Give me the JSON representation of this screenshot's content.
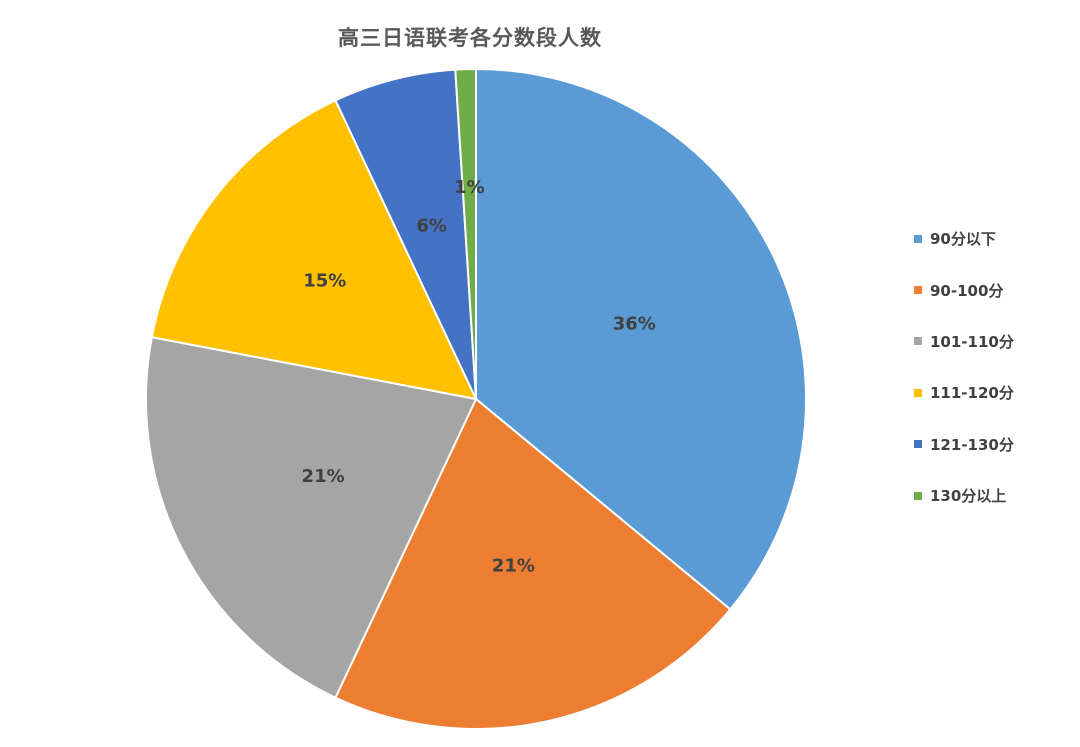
{
  "chart_data": {
    "type": "pie",
    "title": "高三日语联考各分数段人数",
    "categories": [
      "90分以下",
      "90-100分",
      "101-110分",
      "111-120分",
      "121-130分",
      "130分以上"
    ],
    "values": [
      36,
      21,
      21,
      15,
      6,
      1
    ],
    "data_labels": [
      "36%",
      "21%",
      "21%",
      "15%",
      "6%",
      "1%"
    ],
    "colors": [
      "#5b9bd5",
      "#ed7d31",
      "#a5a5a5",
      "#ffc000",
      "#4472c4",
      "#70ad47"
    ],
    "legend_position": "right"
  }
}
